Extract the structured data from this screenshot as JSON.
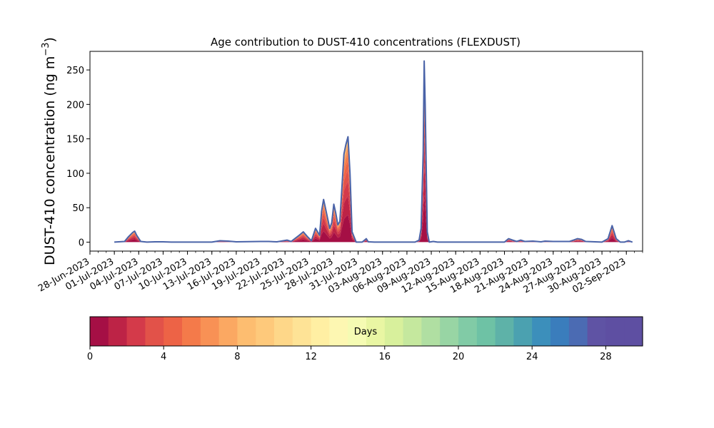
{
  "chart_data": {
    "type": "area",
    "title": "Age contribution to DUST-410 concentrations (FLEXDUST)",
    "ylabel": "DUST-410 concentration (ng m",
    "ylabel_unit_sup": "−3",
    "ylabel_close": ")",
    "xlabel": "",
    "ylim": [
      -13,
      277
    ],
    "yticks": [
      0,
      50,
      100,
      150,
      200,
      250
    ],
    "xlim": [
      "2023-06-28",
      "2023-09-04"
    ],
    "xtick_labels": [
      "28-Jun-2023",
      "01-Jul-2023",
      "04-Jul-2023",
      "07-Jul-2023",
      "10-Jul-2023",
      "13-Jul-2023",
      "16-Jul-2023",
      "19-Jul-2023",
      "22-Jul-2023",
      "25-Jul-2023",
      "28-Jul-2023",
      "31-Jul-2023",
      "03-Aug-2023",
      "06-Aug-2023",
      "09-Aug-2023",
      "12-Aug-2023",
      "15-Aug-2023",
      "18-Aug-2023",
      "21-Aug-2023",
      "24-Aug-2023",
      "27-Aug-2023",
      "30-Aug-2023",
      "02-Sep-2023"
    ],
    "grid": false,
    "stacking": "stacked by age class (days 0–30)",
    "total_series": {
      "name": "",
      "points": [
        [
          "2023-07-01T00:00",
          0
        ],
        [
          "2023-07-02T06:00",
          1
        ],
        [
          "2023-07-02T18:00",
          8
        ],
        [
          "2023-07-03T06:00",
          14
        ],
        [
          "2023-07-03T12:00",
          16
        ],
        [
          "2023-07-03T18:00",
          10
        ],
        [
          "2023-07-04T06:00",
          1
        ],
        [
          "2023-07-05T00:00",
          0
        ],
        [
          "2023-07-06T00:00",
          0.5
        ],
        [
          "2023-07-07T00:00",
          0.5
        ],
        [
          "2023-07-08T00:00",
          0
        ],
        [
          "2023-07-13T00:00",
          0
        ],
        [
          "2023-07-14T00:00",
          2
        ],
        [
          "2023-07-15T00:00",
          1.5
        ],
        [
          "2023-07-16T00:00",
          0.5
        ],
        [
          "2023-07-19T00:00",
          1
        ],
        [
          "2023-07-20T00:00",
          1
        ],
        [
          "2023-07-21T00:00",
          0.5
        ],
        [
          "2023-07-22T06:00",
          3
        ],
        [
          "2023-07-22T18:00",
          1
        ],
        [
          "2023-07-23T18:00",
          10
        ],
        [
          "2023-07-24T06:00",
          15
        ],
        [
          "2023-07-24T18:00",
          8
        ],
        [
          "2023-07-25T06:00",
          2
        ],
        [
          "2023-07-25T18:00",
          20
        ],
        [
          "2023-07-26T06:00",
          10
        ],
        [
          "2023-07-26T12:00",
          45
        ],
        [
          "2023-07-26T18:00",
          62
        ],
        [
          "2023-07-27T00:00",
          48
        ],
        [
          "2023-07-27T12:00",
          20
        ],
        [
          "2023-07-27T18:00",
          28
        ],
        [
          "2023-07-28T00:00",
          55
        ],
        [
          "2023-07-28T06:00",
          42
        ],
        [
          "2023-07-28T12:00",
          25
        ],
        [
          "2023-07-28T18:00",
          30
        ],
        [
          "2023-07-29T00:00",
          80
        ],
        [
          "2023-07-29T06:00",
          128
        ],
        [
          "2023-07-29T12:00",
          142
        ],
        [
          "2023-07-29T18:00",
          153
        ],
        [
          "2023-07-30T00:00",
          100
        ],
        [
          "2023-07-30T06:00",
          15
        ],
        [
          "2023-07-30T18:00",
          0
        ],
        [
          "2023-07-31T12:00",
          0
        ],
        [
          "2023-08-01T00:00",
          5
        ],
        [
          "2023-08-01T06:00",
          0.5
        ],
        [
          "2023-08-02T00:00",
          0
        ],
        [
          "2023-08-07T00:00",
          0
        ],
        [
          "2023-08-07T12:00",
          3
        ],
        [
          "2023-08-07T18:00",
          20
        ],
        [
          "2023-08-08T00:00",
          130
        ],
        [
          "2023-08-08T03:00",
          263
        ],
        [
          "2023-08-08T06:00",
          200
        ],
        [
          "2023-08-08T12:00",
          15
        ],
        [
          "2023-08-08T18:00",
          0
        ],
        [
          "2023-08-09T06:00",
          1
        ],
        [
          "2023-08-09T18:00",
          0
        ],
        [
          "2023-08-18T00:00",
          0
        ],
        [
          "2023-08-18T12:00",
          5
        ],
        [
          "2023-08-19T00:00",
          3
        ],
        [
          "2023-08-19T12:00",
          1
        ],
        [
          "2023-08-20T00:00",
          3
        ],
        [
          "2023-08-20T12:00",
          1
        ],
        [
          "2023-08-21T12:00",
          1.5
        ],
        [
          "2023-08-22T12:00",
          0.5
        ],
        [
          "2023-08-23T00:00",
          1.5
        ],
        [
          "2023-08-24T00:00",
          1
        ],
        [
          "2023-08-25T00:00",
          1
        ],
        [
          "2023-08-26T00:00",
          1
        ],
        [
          "2023-08-26T12:00",
          3
        ],
        [
          "2023-08-27T00:00",
          5
        ],
        [
          "2023-08-27T12:00",
          4
        ],
        [
          "2023-08-28T00:00",
          1
        ],
        [
          "2023-08-30T00:00",
          0
        ],
        [
          "2023-08-30T18:00",
          5
        ],
        [
          "2023-08-31T06:00",
          24
        ],
        [
          "2023-08-31T18:00",
          5
        ],
        [
          "2023-09-01T06:00",
          0
        ],
        [
          "2023-09-01T18:00",
          0
        ],
        [
          "2023-09-02T06:00",
          2
        ],
        [
          "2023-09-02T18:00",
          0
        ]
      ]
    },
    "colorbar": {
      "label": "Days",
      "range": [
        0,
        30
      ],
      "ticks": [
        0,
        4,
        8,
        12,
        16,
        20,
        24,
        28
      ],
      "colors": [
        "#a50f45",
        "#bd2346",
        "#d43a4a",
        "#e25249",
        "#ed6346",
        "#f47a4a",
        "#f89155",
        "#fba862",
        "#fdbd70",
        "#fec97b",
        "#fed789",
        "#fee396",
        "#ffefa3",
        "#fdf7b2",
        "#f5fbb3",
        "#e9f6a3",
        "#d8f09c",
        "#c5e89e",
        "#b0dfa2",
        "#98d5a4",
        "#81cba6",
        "#6ec2a5",
        "#5eb2a8",
        "#4ba1b0",
        "#3c8fbb",
        "#3a7dbc",
        "#4b6bb3",
        "#5f53a4",
        "#5e4fa2",
        "#5e4fa2"
      ]
    }
  }
}
